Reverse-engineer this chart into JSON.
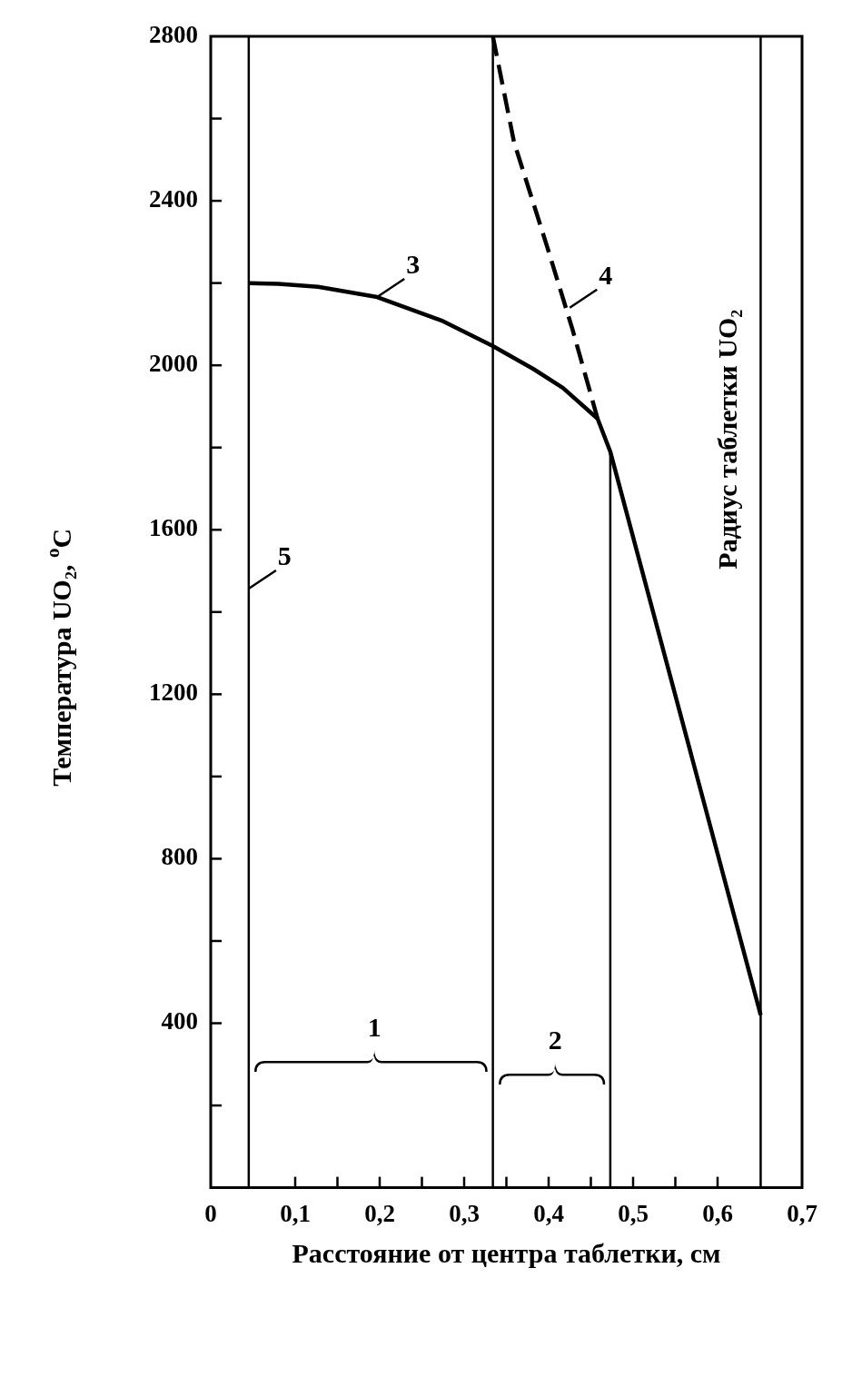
{
  "chart_data": {
    "type": "line",
    "xlabel": "Расстояние от центра таблетки, см",
    "ylabel": "Температура UO₂, $^{o}$C",
    "marker": "none",
    "xlim": [
      0,
      0.7
    ],
    "xticks": [
      {
        "value": 0,
        "label": "0"
      },
      {
        "value": 0.1,
        "label": "0,1"
      },
      {
        "value": 0.15,
        "label": null
      },
      {
        "value": 0.2,
        "label": "0,2"
      },
      {
        "value": 0.25,
        "label": null
      },
      {
        "value": 0.3,
        "label": "0,3"
      },
      {
        "value": 0.35,
        "label": null
      },
      {
        "value": 0.4,
        "label": "0,4"
      },
      {
        "value": 0.45,
        "label": null
      },
      {
        "value": 0.5,
        "label": "0,5"
      },
      {
        "value": 0.55,
        "label": null
      },
      {
        "value": 0.6,
        "label": "0,6"
      },
      {
        "value": 0.7,
        "label": "0,7"
      }
    ],
    "ylim": [
      0,
      2800
    ],
    "yticks": [
      {
        "value": 200,
        "label": null
      },
      400,
      {
        "value": 600,
        "label": null
      },
      800,
      {
        "value": 1000,
        "label": null
      },
      1200,
      {
        "value": 1400,
        "label": null
      },
      1600,
      {
        "value": 1800,
        "label": null
      },
      2000,
      {
        "value": 2200,
        "label": null
      },
      2400,
      {
        "value": 2600,
        "label": null
      },
      2800
    ],
    "series": [
      {
        "color": "#000000",
        "line_style": "solid",
        "x": [
          0.045,
          0.08,
          0.127,
          0.197,
          0.273,
          0.333,
          0.382,
          0.417,
          0.458,
          0.473,
          0.651
        ],
        "values": [
          2200,
          2198,
          2191,
          2166,
          2109,
          2048,
          1991,
          1945,
          1870,
          1790,
          420
        ]
      },
      {
        "color": "#000000",
        "line_style": "dashed",
        "x": [
          0.334,
          0.359,
          0.398,
          0.428,
          0.458
        ],
        "values": [
          2800,
          2543,
          2290,
          2089,
          1870
        ]
      },
      {
        "color": "#000000",
        "line_style": "solid",
        "x": [
          0.473,
          0.473
        ],
        "values": [
          0,
          1790
        ]
      }
    ],
    "ref_lines": [
      {
        "axis": "x",
        "value": 0.045
      },
      {
        "axis": "x",
        "value": 0.334
      },
      {
        "axis": "x",
        "value": 0.651,
        "label": "Радиус таблетки UO₂"
      }
    ],
    "annotations": [
      "1",
      "2",
      {
        "text": "3",
        "x": 0.197,
        "y": 2166
      },
      {
        "text": "4",
        "x": 0.425,
        "y": 2140
      },
      {
        "text": "5",
        "x": 0.045,
        "y": 1457
      }
    ]
  }
}
